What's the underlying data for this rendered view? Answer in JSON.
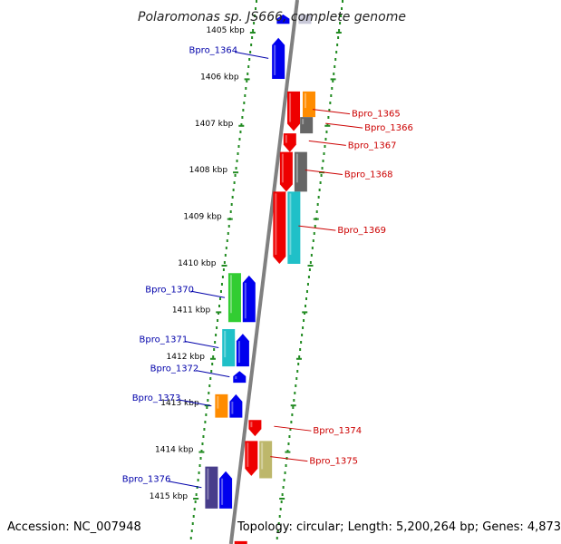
{
  "title": "Polaromonas sp. JS666, complete genome",
  "accession": "Accession: NC_007948",
  "topology": "Topology: circular; Length: 5,200,264 bp; Genes: 4,873",
  "ticks": [
    "1405 kbp",
    "1406 kbp",
    "1407 kbp",
    "1408 kbp",
    "1409 kbp",
    "1410 kbp",
    "1411 kbp",
    "1412 kbp",
    "1413 kbp",
    "1414 kbp",
    "1415 kbp"
  ],
  "colors": {
    "left_label": "#0000aa",
    "right_label": "#cc0000",
    "dots": "#228b22",
    "axis": "#808080",
    "blue": "#0000ee",
    "red": "#ee0000",
    "orange": "#ff8c00",
    "gray": "#666666",
    "green": "#32cd32",
    "cyan": "#20c0c8",
    "darkslate": "#483d8b",
    "khaki": "#bdb76b"
  },
  "genes": [
    {
      "id": "top-blue",
      "label": "",
      "strand": "forward",
      "start_kbp": 1404.65,
      "end_kbp": 1404.85,
      "color": "blue"
    },
    {
      "id": "top-gray",
      "label": "",
      "strand": "reverse",
      "start_kbp": 1404.65,
      "end_kbp": 1404.85,
      "color": "lightgray"
    },
    {
      "id": "Bpro_1364",
      "label": "Bpro_1364",
      "strand": "forward",
      "start_kbp": 1405.15,
      "end_kbp": 1406.03,
      "color": "blue"
    },
    {
      "id": "Bpro_1365a",
      "label": "Bpro_1365",
      "strand": "reverse",
      "start_kbp": 1406.3,
      "end_kbp": 1407.15,
      "color": "red"
    },
    {
      "id": "Bpro_1365b",
      "label": "",
      "strand": "reverse-outer",
      "start_kbp": 1406.3,
      "end_kbp": 1406.85,
      "color": "orange"
    },
    {
      "id": "Bpro_1366",
      "label": "Bpro_1366",
      "strand": "reverse-outer",
      "start_kbp": 1406.85,
      "end_kbp": 1407.2,
      "color": "gray"
    },
    {
      "id": "Bpro_1367",
      "label": "Bpro_1367",
      "strand": "reverse",
      "start_kbp": 1407.2,
      "end_kbp": 1407.6,
      "color": "red"
    },
    {
      "id": "Bpro_1368a",
      "label": "Bpro_1368",
      "strand": "reverse",
      "start_kbp": 1407.6,
      "end_kbp": 1408.45,
      "color": "red"
    },
    {
      "id": "Bpro_1368b",
      "label": "",
      "strand": "reverse-outer",
      "start_kbp": 1407.6,
      "end_kbp": 1408.45,
      "color": "gray"
    },
    {
      "id": "Bpro_1369a",
      "label": "Bpro_1369",
      "strand": "reverse",
      "start_kbp": 1408.45,
      "end_kbp": 1410.0,
      "color": "red"
    },
    {
      "id": "Bpro_1369b",
      "label": "",
      "strand": "reverse-outer",
      "start_kbp": 1408.45,
      "end_kbp": 1410.0,
      "color": "cyan"
    },
    {
      "id": "Bpro_1370a",
      "label": "Bpro_1370",
      "strand": "forward-outer",
      "start_kbp": 1410.2,
      "end_kbp": 1411.25,
      "color": "green"
    },
    {
      "id": "Bpro_1370b",
      "label": "",
      "strand": "forward",
      "start_kbp": 1410.25,
      "end_kbp": 1411.25,
      "color": "blue"
    },
    {
      "id": "Bpro_1371a",
      "label": "Bpro_1371",
      "strand": "forward-outer",
      "start_kbp": 1411.4,
      "end_kbp": 1412.2,
      "color": "cyan"
    },
    {
      "id": "Bpro_1371b",
      "label": "",
      "strand": "forward",
      "start_kbp": 1411.5,
      "end_kbp": 1412.2,
      "color": "blue"
    },
    {
      "id": "Bpro_1372",
      "label": "Bpro_1372",
      "strand": "forward",
      "start_kbp": 1412.3,
      "end_kbp": 1412.55,
      "color": "blue"
    },
    {
      "id": "Bpro_1373a",
      "label": "Bpro_1373",
      "strand": "forward-outer",
      "start_kbp": 1412.8,
      "end_kbp": 1413.3,
      "color": "orange"
    },
    {
      "id": "Bpro_1373b",
      "label": "",
      "strand": "forward",
      "start_kbp": 1412.8,
      "end_kbp": 1413.3,
      "color": "blue"
    },
    {
      "id": "Bpro_1374",
      "label": "Bpro_1374",
      "strand": "reverse",
      "start_kbp": 1413.35,
      "end_kbp": 1413.7,
      "color": "red"
    },
    {
      "id": "Bpro_1375a",
      "label": "Bpro_1375",
      "strand": "reverse",
      "start_kbp": 1413.8,
      "end_kbp": 1414.55,
      "color": "red"
    },
    {
      "id": "Bpro_1375b",
      "label": "",
      "strand": "reverse-outer",
      "start_kbp": 1413.8,
      "end_kbp": 1414.6,
      "color": "khaki"
    },
    {
      "id": "Bpro_1376a",
      "label": "Bpro_1376",
      "strand": "forward-outer",
      "start_kbp": 1414.35,
      "end_kbp": 1415.25,
      "color": "darkslate"
    },
    {
      "id": "Bpro_1376b",
      "label": "",
      "strand": "forward",
      "start_kbp": 1414.45,
      "end_kbp": 1415.25,
      "color": "blue"
    },
    {
      "id": "bottom-red",
      "label": "",
      "strand": "reverse",
      "start_kbp": 1415.95,
      "end_kbp": 1416.1,
      "color": "red"
    }
  ]
}
